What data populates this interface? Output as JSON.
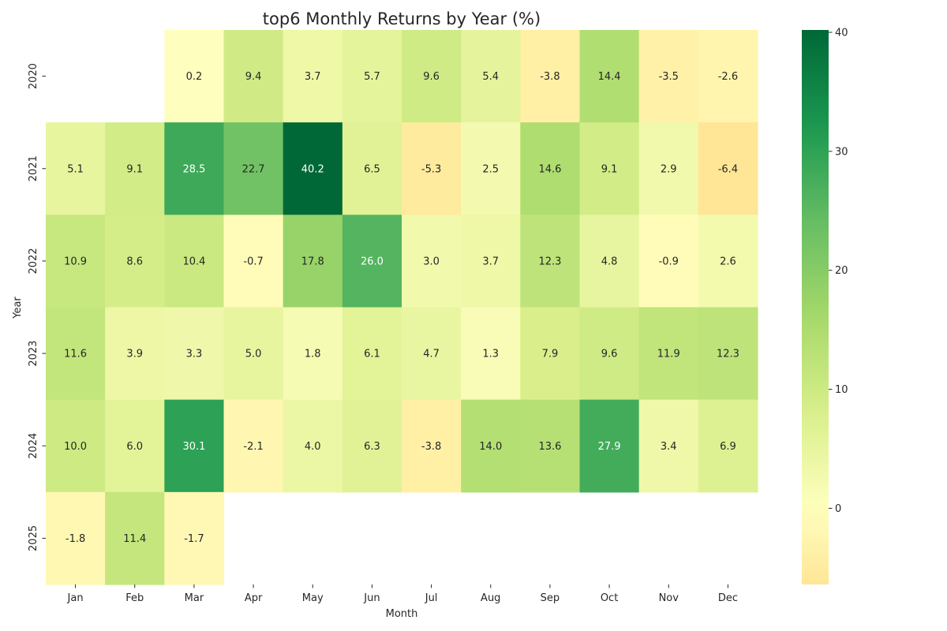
{
  "chart_data": {
    "type": "heatmap",
    "title": "top6 Monthly Returns by Year (%)",
    "xlabel": "Month",
    "ylabel": "Year",
    "x_categories": [
      "Jan",
      "Feb",
      "Mar",
      "Apr",
      "May",
      "Jun",
      "Jul",
      "Aug",
      "Sep",
      "Oct",
      "Nov",
      "Dec"
    ],
    "y_categories": [
      "2020",
      "2021",
      "2022",
      "2023",
      "2024",
      "2025"
    ],
    "values": [
      [
        null,
        null,
        0.2,
        9.4,
        3.7,
        5.7,
        9.6,
        5.4,
        -3.8,
        14.4,
        -3.5,
        -2.6
      ],
      [
        5.1,
        9.1,
        28.5,
        22.7,
        40.2,
        6.5,
        -5.3,
        2.5,
        14.6,
        9.1,
        2.9,
        -6.4
      ],
      [
        10.9,
        8.6,
        10.4,
        -0.7,
        17.8,
        26.0,
        3.0,
        3.7,
        12.3,
        4.8,
        -0.9,
        2.6
      ],
      [
        11.6,
        3.9,
        3.3,
        5.0,
        1.8,
        6.1,
        4.7,
        1.3,
        7.9,
        9.6,
        11.9,
        12.3
      ],
      [
        10.0,
        6.0,
        30.1,
        -2.1,
        4.0,
        6.3,
        -3.8,
        14.0,
        13.6,
        27.9,
        3.4,
        6.9
      ],
      [
        -1.8,
        11.4,
        -1.7,
        null,
        null,
        null,
        null,
        null,
        null,
        null,
        null,
        null
      ]
    ],
    "colormap": "RdYlGn",
    "center": 0,
    "colorbar_range": [
      -6.4,
      40.2
    ],
    "colorbar_ticks": [
      0,
      10,
      20,
      30,
      40
    ],
    "annotated": true,
    "grid": false,
    "legend": "colorbar-right"
  }
}
